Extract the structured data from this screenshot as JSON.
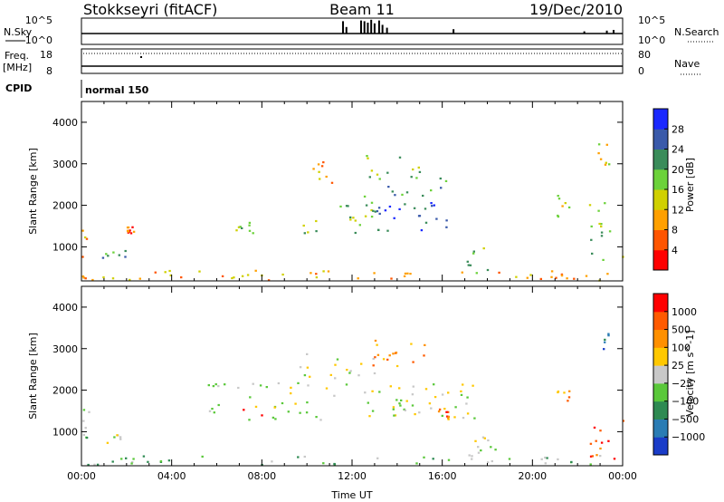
{
  "header": {
    "station": "Stokkseyri (fitACF)",
    "beam": "Beam 11",
    "date": "19/Dec/2010"
  },
  "strip_labels": {
    "nsky": "N.Sky",
    "nsearch": "N.Search",
    "freq": "Freq.",
    "mhz": "[MHz]",
    "nave": "Nave",
    "cpid": "CPID",
    "mode": "normal 150"
  },
  "chart_data": [
    {
      "type": "line",
      "panel": "noise",
      "series": [
        {
          "name": "N.Sky",
          "style": "solid"
        },
        {
          "name": "N.Search",
          "style": "dotted"
        }
      ],
      "y_left_ticks": [
        "10^5",
        "10^0"
      ],
      "y_right_ticks": [
        "10^5",
        "10^0"
      ],
      "spike_hours": [
        11.6,
        11.75,
        12.4,
        12.55,
        12.7,
        12.85,
        13.0,
        13.2,
        13.35,
        13.55,
        16.5,
        22.3,
        23.3,
        23.6
      ],
      "spike_levels": [
        0.85,
        0.45,
        0.9,
        0.85,
        0.75,
        0.95,
        0.7,
        0.9,
        0.6,
        0.4,
        0.3,
        0.15,
        0.2,
        0.25
      ]
    },
    {
      "type": "line",
      "panel": "frequency",
      "series": [
        {
          "name": "Freq.",
          "style": "solid"
        },
        {
          "name": "Nave",
          "style": "dotted"
        }
      ],
      "y_left_ticks": [
        "18",
        "8"
      ],
      "y_right_ticks": [
        "80",
        "0"
      ]
    },
    {
      "type": "heatmap",
      "panel": "power",
      "xlabel": "",
      "ylabel": "Slant Range [km]",
      "xlim": [
        0,
        24
      ],
      "ylim": [
        180,
        4500
      ],
      "y_ticks": [
        1000,
        2000,
        3000,
        4000
      ],
      "colorbar": {
        "label": "Power [dB]",
        "ticks": [
          "28",
          "24",
          "20",
          "16",
          "12",
          "8",
          "4"
        ],
        "colors": [
          "#ff0000",
          "#ff5500",
          "#ffa000",
          "#d0d000",
          "#6cd23a",
          "#3a8c5a",
          "#3a5aaa",
          "#1a28ff"
        ]
      },
      "regions": [
        {
          "x0": 0.0,
          "x1": 0.25,
          "r0": 200,
          "r1": 1900,
          "level": 2
        },
        {
          "x0": 0.7,
          "x1": 2.0,
          "r0": 750,
          "r1": 950,
          "level": 5
        },
        {
          "x0": 2.0,
          "x1": 2.3,
          "r0": 1350,
          "r1": 1500,
          "level": 1
        },
        {
          "x0": 6.7,
          "x1": 8.3,
          "r0": 1300,
          "r1": 1650,
          "level": 4
        },
        {
          "x0": 9.8,
          "x1": 13.0,
          "r0": 1350,
          "r1": 2200,
          "level": 4
        },
        {
          "x0": 12.5,
          "x1": 16.5,
          "r0": 1300,
          "r1": 2100,
          "level": 6
        },
        {
          "x0": 12.5,
          "x1": 16.2,
          "r0": 2200,
          "r1": 2700,
          "level": 5
        },
        {
          "x0": 12.3,
          "x1": 15.0,
          "r0": 2600,
          "r1": 3250,
          "level": 4
        },
        {
          "x0": 10.2,
          "x1": 11.3,
          "r0": 2500,
          "r1": 3100,
          "level": 2
        },
        {
          "x0": 17.0,
          "x1": 18.2,
          "r0": 300,
          "r1": 1100,
          "level": 4
        },
        {
          "x0": 21.0,
          "x1": 21.6,
          "r0": 1700,
          "r1": 2300,
          "level": 3
        },
        {
          "x0": 22.5,
          "x1": 24.0,
          "r0": 700,
          "r1": 2300,
          "level": 4
        },
        {
          "x0": 22.8,
          "x1": 23.6,
          "r0": 3000,
          "r1": 3500,
          "level": 3
        },
        {
          "x0": 0.0,
          "x1": 24.0,
          "r0": 200,
          "r1": 450,
          "level": 2
        }
      ]
    },
    {
      "type": "heatmap",
      "panel": "velocity",
      "xlabel": "Time UT",
      "ylabel": "Slant Range [km]",
      "xlim": [
        0,
        24
      ],
      "ylim": [
        180,
        4500
      ],
      "x_ticks": [
        "00:00",
        "04:00",
        "08:00",
        "12:00",
        "16:00",
        "20:00",
        "00:00"
      ],
      "y_ticks": [
        1000,
        2000,
        3000,
        4000
      ],
      "colorbar": {
        "label": "Velocity [m s^-1]",
        "ticks": [
          "1000",
          "500",
          "100",
          "25",
          "−25",
          "−100",
          "−500",
          "−1000"
        ],
        "colors": [
          "#1a3cc8",
          "#2a7cb4",
          "#2e8a52",
          "#5ac83a",
          "#c8c8c8",
          "#ffc800",
          "#ff9000",
          "#ff5a00",
          "#ff0000"
        ]
      },
      "regions": [
        {
          "x0": 0.0,
          "x1": 0.3,
          "r0": 200,
          "r1": 1900,
          "level": 3
        },
        {
          "x0": 0.7,
          "x1": 2.0,
          "r0": 750,
          "r1": 950,
          "level": 4
        },
        {
          "x0": 5.5,
          "x1": 17.5,
          "r0": 1300,
          "r1": 2200,
          "level": 4
        },
        {
          "x0": 9.5,
          "x1": 13.0,
          "r0": 2300,
          "r1": 2900,
          "level": 4
        },
        {
          "x0": 6.8,
          "x1": 8.2,
          "r0": 1300,
          "r1": 1650,
          "level": 7
        },
        {
          "x0": 12.3,
          "x1": 15.2,
          "r0": 2600,
          "r1": 3250,
          "level": 6
        },
        {
          "x0": 15.8,
          "x1": 16.3,
          "r0": 1300,
          "r1": 1600,
          "level": 7
        },
        {
          "x0": 17.0,
          "x1": 18.5,
          "r0": 250,
          "r1": 1100,
          "level": 4
        },
        {
          "x0": 21.0,
          "x1": 21.6,
          "r0": 1700,
          "r1": 2100,
          "level": 6
        },
        {
          "x0": 22.5,
          "x1": 24.0,
          "r0": 300,
          "r1": 1300,
          "level": 7
        },
        {
          "x0": 22.8,
          "x1": 23.6,
          "r0": 3000,
          "r1": 3500,
          "level": 1
        },
        {
          "x0": 0.0,
          "x1": 24.0,
          "r0": 200,
          "r1": 450,
          "level": 3
        }
      ]
    }
  ]
}
